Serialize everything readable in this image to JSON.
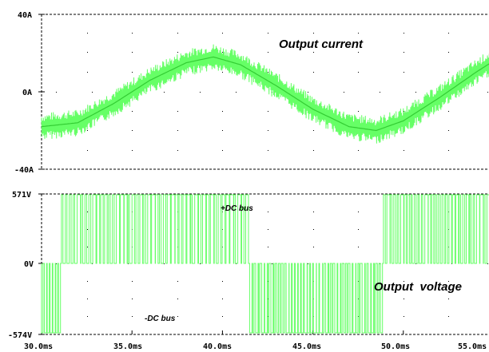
{
  "chart_data": [
    {
      "type": "line",
      "title": "",
      "annotation": "Output current",
      "x_range_ms": [
        30,
        55
      ],
      "ylim": [
        -40,
        40
      ],
      "y_tick_labels": [
        "40A",
        "0A",
        "-40A"
      ],
      "series_color": "#66ff66",
      "series": [
        {
          "description": "sinusoid with PWM ripple",
          "x_ms": [
            30,
            32,
            34,
            36,
            38,
            39.5,
            41,
            43,
            45,
            47,
            48.5,
            50,
            52,
            54,
            55
          ],
          "values": [
            -18,
            -16,
            -6,
            6,
            15,
            18,
            14,
            3,
            -9,
            -18,
            -20,
            -15,
            -3,
            10,
            16
          ]
        }
      ]
    },
    {
      "type": "line",
      "title": "",
      "annotation": "Output  voltage",
      "x_range_ms": [
        30,
        55
      ],
      "ylim": [
        -574,
        571
      ],
      "y_tick_labels": [
        "571V",
        "0V",
        "-574V"
      ],
      "series_color": "#66ff66",
      "labels": {
        "positive": "+DC bus",
        "negative": "-DC bus"
      },
      "segments_ms": [
        {
          "from": 30,
          "to": 31.1,
          "level": "negative",
          "density": 7
        },
        {
          "from": 31.1,
          "to": 41.5,
          "level": "positive",
          "density": 48
        },
        {
          "from": 41.5,
          "to": 48.9,
          "level": "negative",
          "density": 44
        },
        {
          "from": 48.9,
          "to": 55,
          "level": "positive",
          "density": 32
        }
      ]
    }
  ],
  "x_tick_labels": [
    "30.0ms",
    "35.0ms",
    "40.0ms",
    "45.0ms",
    "50.0ms",
    "55.0ms"
  ]
}
